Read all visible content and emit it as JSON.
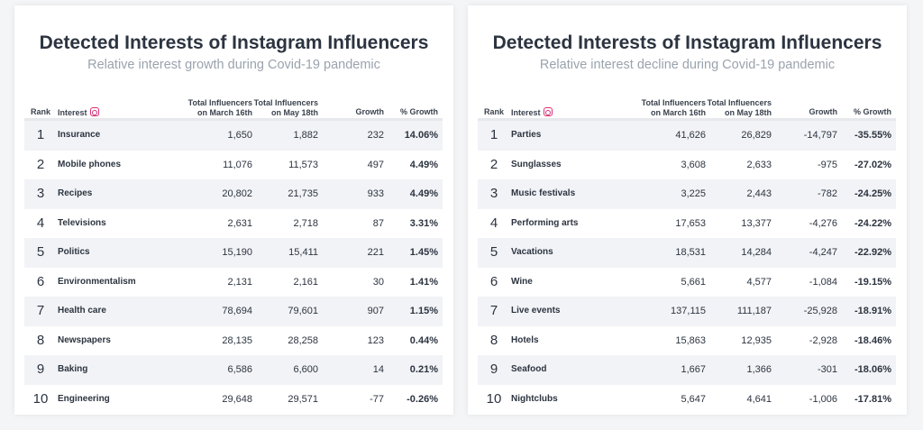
{
  "headers": {
    "rank": "Rank",
    "interest": "Interest",
    "march_l1": "Total Influencers",
    "march_l2": "on March 16th",
    "may_l1": "Total Influencers",
    "may_l2": "on May 18th",
    "growth": "Growth",
    "pct": "% Growth",
    "icon": "instagram-icon"
  },
  "left": {
    "title": "Detected Interests of Instagram Influencers",
    "subtitle": "Relative interest growth during Covid-19 pandemic",
    "rows": [
      [
        "1",
        "Insurance",
        "1,650",
        "1,882",
        "232",
        "14.06%"
      ],
      [
        "2",
        "Mobile phones",
        "11,076",
        "11,573",
        "497",
        "4.49%"
      ],
      [
        "3",
        "Recipes",
        "20,802",
        "21,735",
        "933",
        "4.49%"
      ],
      [
        "4",
        "Televisions",
        "2,631",
        "2,718",
        "87",
        "3.31%"
      ],
      [
        "5",
        "Politics",
        "15,190",
        "15,411",
        "221",
        "1.45%"
      ],
      [
        "6",
        "Environmentalism",
        "2,131",
        "2,161",
        "30",
        "1.41%"
      ],
      [
        "7",
        "Health care",
        "78,694",
        "79,601",
        "907",
        "1.15%"
      ],
      [
        "8",
        "Newspapers",
        "28,135",
        "28,258",
        "123",
        "0.44%"
      ],
      [
        "9",
        "Baking",
        "6,586",
        "6,600",
        "14",
        "0.21%"
      ],
      [
        "10",
        "Engineering",
        "29,648",
        "29,571",
        "-77",
        "-0.26%"
      ]
    ]
  },
  "right": {
    "title": "Detected Interests of Instagram Influencers",
    "subtitle": "Relative interest decline during Covid-19 pandemic",
    "rows": [
      [
        "1",
        "Parties",
        "41,626",
        "26,829",
        "-14,797",
        "-35.55%"
      ],
      [
        "2",
        "Sunglasses",
        "3,608",
        "2,633",
        "-975",
        "-27.02%"
      ],
      [
        "3",
        "Music festivals",
        "3,225",
        "2,443",
        "-782",
        "-24.25%"
      ],
      [
        "4",
        "Performing arts",
        "17,653",
        "13,377",
        "-4,276",
        "-24.22%"
      ],
      [
        "5",
        "Vacations",
        "18,531",
        "14,284",
        "-4,247",
        "-22.92%"
      ],
      [
        "6",
        "Wine",
        "5,661",
        "4,577",
        "-1,084",
        "-19.15%"
      ],
      [
        "7",
        "Live events",
        "137,115",
        "111,187",
        "-25,928",
        "-18.91%"
      ],
      [
        "8",
        "Hotels",
        "15,863",
        "12,935",
        "-2,928",
        "-18.46%"
      ],
      [
        "9",
        "Seafood",
        "1,667",
        "1,366",
        "-301",
        "-18.06%"
      ],
      [
        "10",
        "Nightclubs",
        "5,647",
        "4,641",
        "-1,006",
        "-17.81%"
      ]
    ]
  }
}
